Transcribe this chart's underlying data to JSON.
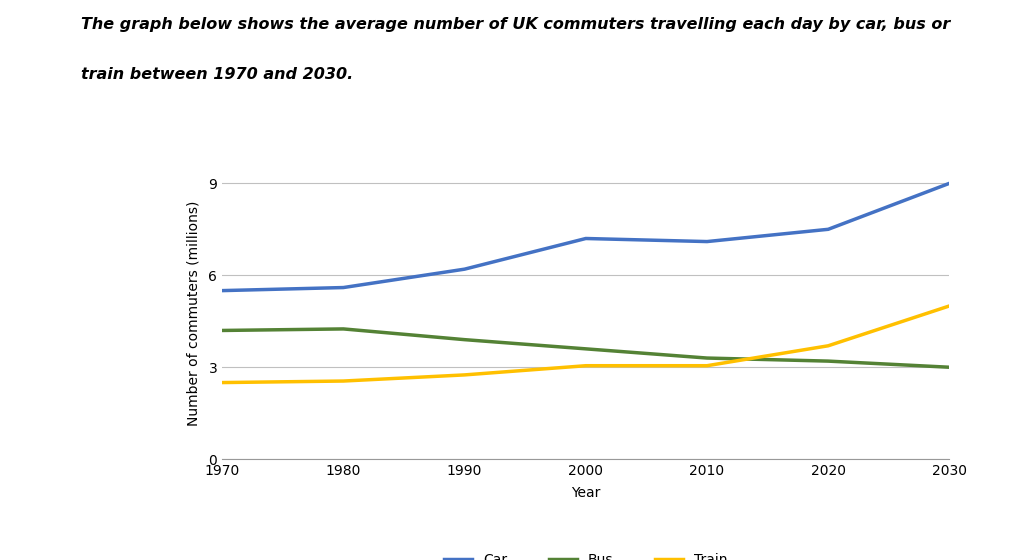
{
  "title_line1": "The graph below shows the average number of UK commuters travelling each day by car, bus or",
  "title_line2": "train between 1970 and 2030.",
  "xlabel": "Year",
  "ylabel": "Number of commuters (millions)",
  "years": [
    1970,
    1980,
    1990,
    2000,
    2010,
    2020,
    2030
  ],
  "car": [
    5.5,
    5.6,
    6.2,
    7.2,
    7.1,
    7.5,
    9.0
  ],
  "bus": [
    4.2,
    4.25,
    3.9,
    3.6,
    3.3,
    3.2,
    3.0
  ],
  "train": [
    2.5,
    2.55,
    2.75,
    3.05,
    3.05,
    3.7,
    5.0
  ],
  "car_color": "#4472C4",
  "bus_color": "#548235",
  "train_color": "#FFC000",
  "ylim": [
    0,
    9.5
  ],
  "yticks": [
    0,
    3,
    6,
    9
  ],
  "xlim": [
    1970,
    2030
  ],
  "xticks": [
    1970,
    1980,
    1990,
    2000,
    2010,
    2020,
    2030
  ],
  "grid_color": "#c0c0c0",
  "line_width": 2.5,
  "bg_color": "#ffffff",
  "title_fontsize": 11.5,
  "axis_label_fontsize": 10,
  "tick_fontsize": 10,
  "legend_fontsize": 10
}
